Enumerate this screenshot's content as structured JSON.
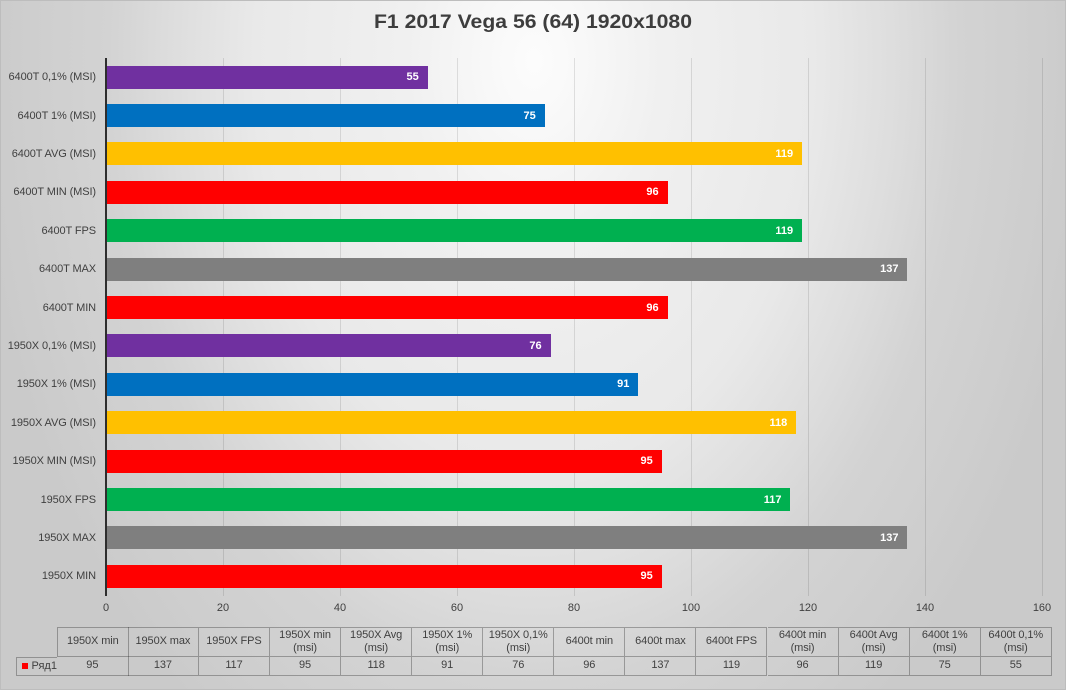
{
  "chart_data": {
    "type": "bar",
    "orientation": "horizontal",
    "title": "F1 2017 Vega 56 (64) 1920x1080",
    "series_name": "Ряд1",
    "legend_key_color": "#ff0000",
    "categories": [
      "6400T 0,1% (MSI)",
      "6400T 1% (MSI)",
      "6400T AVG (MSI)",
      "6400T MIN (MSI)",
      "6400T FPS",
      "6400T MAX",
      "6400T MIN",
      "1950X 0,1% (MSI)",
      "1950X 1% (MSI)",
      "1950X AVG (MSI)",
      "1950X MIN (MSI)",
      "1950X FPS",
      "1950X MAX",
      "1950X MIN"
    ],
    "values": [
      55,
      75,
      119,
      96,
      119,
      137,
      96,
      76,
      91,
      118,
      95,
      117,
      137,
      95
    ],
    "bar_colors": [
      "#7030a0",
      "#0070c0",
      "#ffc000",
      "#ff0000",
      "#00b050",
      "#7f7f7f",
      "#ff0000",
      "#7030a0",
      "#0070c0",
      "#ffc000",
      "#ff0000",
      "#00b050",
      "#7f7f7f",
      "#ff0000"
    ],
    "xlabel": "",
    "ylabel": "",
    "xlim": [
      0,
      160
    ],
    "xticks": [
      "0",
      "20",
      "40",
      "60",
      "80",
      "100",
      "120",
      "140",
      "160"
    ],
    "grid": "vertical",
    "legend_position": "data-table",
    "data_table": {
      "row_label": "Ряд1",
      "column_headers": [
        [
          "1950X min"
        ],
        [
          "1950X max"
        ],
        [
          "1950X FPS"
        ],
        [
          "1950X min",
          "(msi)"
        ],
        [
          "1950X Avg",
          "(msi)"
        ],
        [
          "1950X 1%",
          "(msi)"
        ],
        [
          "1950X 0,1%",
          "(msi)"
        ],
        [
          "6400t min"
        ],
        [
          "6400t max"
        ],
        [
          "6400t FPS"
        ],
        [
          "6400t min",
          "(msi)"
        ],
        [
          "6400t Avg",
          "(msi)"
        ],
        [
          "6400t 1%",
          "(msi)"
        ],
        [
          "6400t 0,1%",
          "(msi)"
        ]
      ],
      "row_values": [
        "95",
        "137",
        "117",
        "95",
        "118",
        "91",
        "76",
        "96",
        "137",
        "119",
        "96",
        "119",
        "75",
        "55"
      ]
    }
  }
}
